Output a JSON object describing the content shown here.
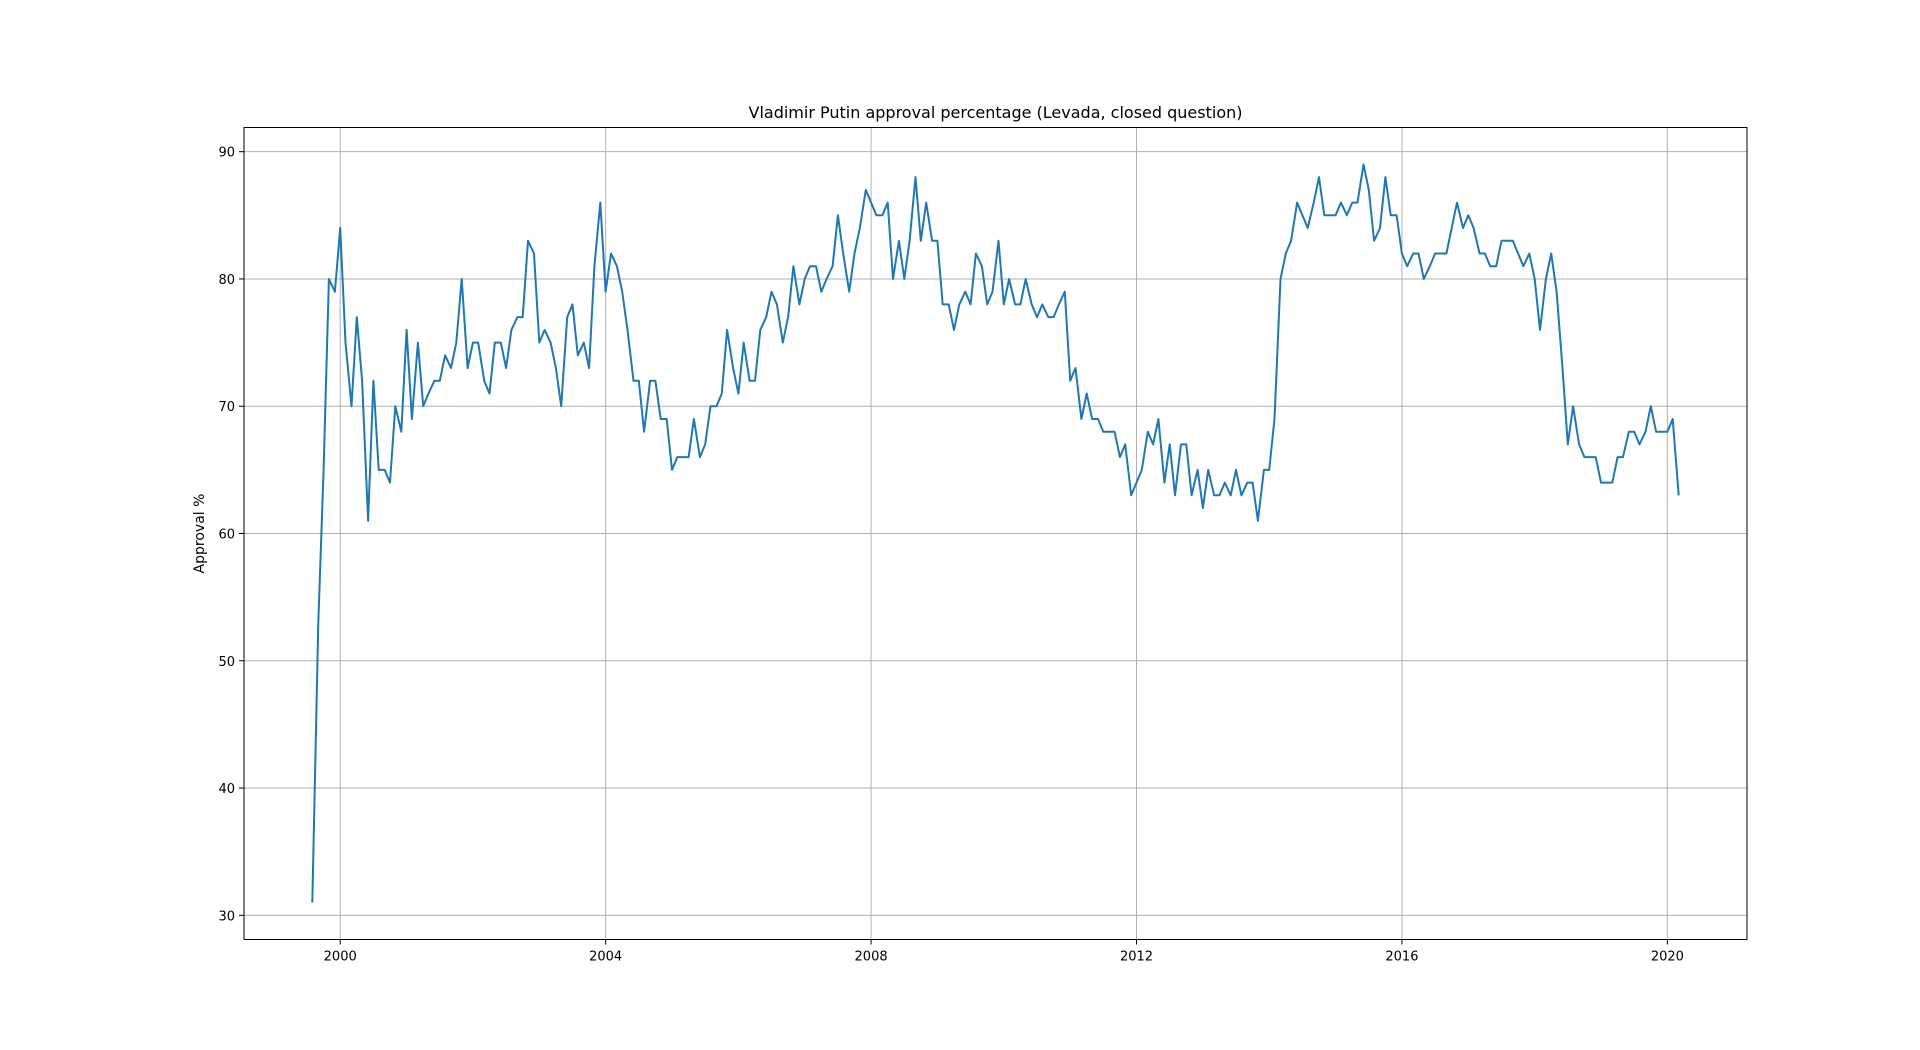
{
  "chart_data": {
    "type": "line",
    "title": "Vladimir Putin approval percentage (Levada, closed question)",
    "xlabel": "",
    "ylabel": "Approval %",
    "xlim": [
      1998.55,
      2021.2
    ],
    "ylim": [
      28.1,
      91.9
    ],
    "x_ticks": [
      2000,
      2004,
      2008,
      2012,
      2016,
      2020
    ],
    "x_tick_labels": [
      "2000",
      "2004",
      "2008",
      "2012",
      "2016",
      "2020"
    ],
    "y_ticks": [
      30,
      40,
      50,
      60,
      70,
      80,
      90
    ],
    "y_tick_labels": [
      "30",
      "40",
      "50",
      "60",
      "70",
      "80",
      "90"
    ],
    "grid": true,
    "line_color": "#1f77b4",
    "series": [
      {
        "x": [
          1999.58,
          1999.67,
          1999.75,
          1999.83,
          1999.92,
          2000.0,
          2000.08,
          2000.17,
          2000.25,
          2000.33,
          2000.42,
          2000.5,
          2000.58,
          2000.67,
          2000.75,
          2000.83,
          2000.92,
          2001.0,
          2001.08,
          2001.17,
          2001.25,
          2001.33,
          2001.42,
          2001.5,
          2001.58,
          2001.67,
          2001.75,
          2001.83,
          2001.92,
          2002.0,
          2002.08,
          2002.17,
          2002.25,
          2002.33,
          2002.42,
          2002.5,
          2002.58,
          2002.67,
          2002.75,
          2002.83,
          2002.92,
          2003.0,
          2003.08,
          2003.17,
          2003.25,
          2003.33,
          2003.42,
          2003.5,
          2003.58,
          2003.67,
          2003.75,
          2003.83,
          2003.92,
          2004.0,
          2004.08,
          2004.17,
          2004.25,
          2004.33,
          2004.42,
          2004.5,
          2004.58,
          2004.67,
          2004.75,
          2004.83,
          2004.92,
          2005.0,
          2005.08,
          2005.17,
          2005.25,
          2005.33,
          2005.42,
          2005.5,
          2005.58,
          2005.67,
          2005.75,
          2005.83,
          2005.92,
          2006.0,
          2006.08,
          2006.17,
          2006.25,
          2006.33,
          2006.42,
          2006.5,
          2006.58,
          2006.67,
          2006.75,
          2006.83,
          2006.92,
          2007.0,
          2007.08,
          2007.17,
          2007.25,
          2007.33,
          2007.42,
          2007.5,
          2007.58,
          2007.67,
          2007.75,
          2007.83,
          2007.92,
          2008.0,
          2008.08,
          2008.17,
          2008.25,
          2008.33,
          2008.42,
          2008.5,
          2008.58,
          2008.67,
          2008.75,
          2008.83,
          2008.92,
          2009.0,
          2009.08,
          2009.17,
          2009.25,
          2009.33,
          2009.42,
          2009.5,
          2009.58,
          2009.67,
          2009.75,
          2009.83,
          2009.92,
          2010.0,
          2010.08,
          2010.17,
          2010.25,
          2010.33,
          2010.42,
          2010.5,
          2010.58,
          2010.67,
          2010.75,
          2010.83,
          2010.92,
          2011.0,
          2011.08,
          2011.17,
          2011.25,
          2011.33,
          2011.42,
          2011.5,
          2011.58,
          2011.67,
          2011.75,
          2011.83,
          2011.92,
          2012.0,
          2012.08,
          2012.17,
          2012.25,
          2012.33,
          2012.42,
          2012.5,
          2012.58,
          2012.67,
          2012.75,
          2012.83,
          2012.92,
          2013.0,
          2013.08,
          2013.17,
          2013.25,
          2013.33,
          2013.42,
          2013.5,
          2013.58,
          2013.67,
          2013.75,
          2013.83,
          2013.92,
          2014.0,
          2014.08,
          2014.17,
          2014.25,
          2014.33,
          2014.42,
          2014.5,
          2014.58,
          2014.67,
          2014.75,
          2014.83,
          2014.92,
          2015.0,
          2015.08,
          2015.17,
          2015.25,
          2015.33,
          2015.42,
          2015.5,
          2015.58,
          2015.67,
          2015.75,
          2015.83,
          2015.92,
          2016.0,
          2016.08,
          2016.17,
          2016.25,
          2016.33,
          2016.42,
          2016.5,
          2016.58,
          2016.67,
          2016.75,
          2016.83,
          2016.92,
          2017.0,
          2017.08,
          2017.17,
          2017.25,
          2017.33,
          2017.42,
          2017.5,
          2017.58,
          2017.67,
          2017.75,
          2017.83,
          2017.92,
          2018.0,
          2018.08,
          2018.17,
          2018.25,
          2018.33,
          2018.42,
          2018.5,
          2018.58,
          2018.67,
          2018.75,
          2018.83,
          2018.92,
          2019.0,
          2019.08,
          2019.17,
          2019.25,
          2019.33,
          2019.42,
          2019.5,
          2019.58,
          2019.67,
          2019.75,
          2019.83,
          2019.92,
          2020.0,
          2020.08,
          2020.17
        ],
        "values": [
          31,
          53,
          65,
          80,
          79,
          84,
          75,
          70,
          77,
          72,
          61,
          72,
          65,
          65,
          64,
          70,
          68,
          76,
          69,
          75,
          70,
          71,
          72,
          72,
          74,
          73,
          75,
          80,
          73,
          75,
          75,
          72,
          71,
          75,
          75,
          73,
          76,
          77,
          77,
          83,
          82,
          75,
          76,
          75,
          73,
          70,
          77,
          78,
          74,
          75,
          73,
          81,
          86,
          79,
          82,
          81,
          79,
          76,
          72,
          72,
          68,
          72,
          72,
          69,
          69,
          65,
          66,
          66,
          66,
          69,
          66,
          67,
          70,
          70,
          71,
          76,
          73,
          71,
          75,
          72,
          72,
          76,
          77,
          79,
          78,
          75,
          77,
          81,
          78,
          80,
          81,
          81,
          79,
          80,
          81,
          85,
          82,
          79,
          82,
          84,
          87,
          86,
          85,
          85,
          86,
          80,
          83,
          80,
          83,
          88,
          83,
          86,
          83,
          83,
          78,
          78,
          76,
          78,
          79,
          78,
          82,
          81,
          78,
          79,
          83,
          78,
          80,
          78,
          78,
          80,
          78,
          77,
          78,
          77,
          77,
          78,
          79,
          72,
          73,
          69,
          71,
          69,
          69,
          68,
          68,
          68,
          66,
          67,
          63,
          64,
          65,
          68,
          67,
          69,
          64,
          67,
          63,
          67,
          67,
          63,
          65,
          62,
          65,
          63,
          63,
          64,
          63,
          65,
          63,
          64,
          64,
          61,
          65,
          65,
          69,
          80,
          82,
          83,
          86,
          85,
          84,
          86,
          88,
          85,
          85,
          85,
          86,
          85,
          86,
          86,
          89,
          87,
          83,
          84,
          88,
          85,
          85,
          82,
          81,
          82,
          82,
          80,
          81,
          82,
          82,
          82,
          84,
          86,
          84,
          85,
          84,
          82,
          82,
          81,
          81,
          83,
          83,
          83,
          82,
          81,
          82,
          80,
          76,
          80,
          82,
          79,
          73,
          67,
          70,
          67,
          66,
          66,
          66,
          64,
          64,
          64,
          66,
          66,
          68,
          68,
          67,
          68,
          70,
          68,
          68,
          68,
          69,
          63
        ]
      }
    ]
  }
}
